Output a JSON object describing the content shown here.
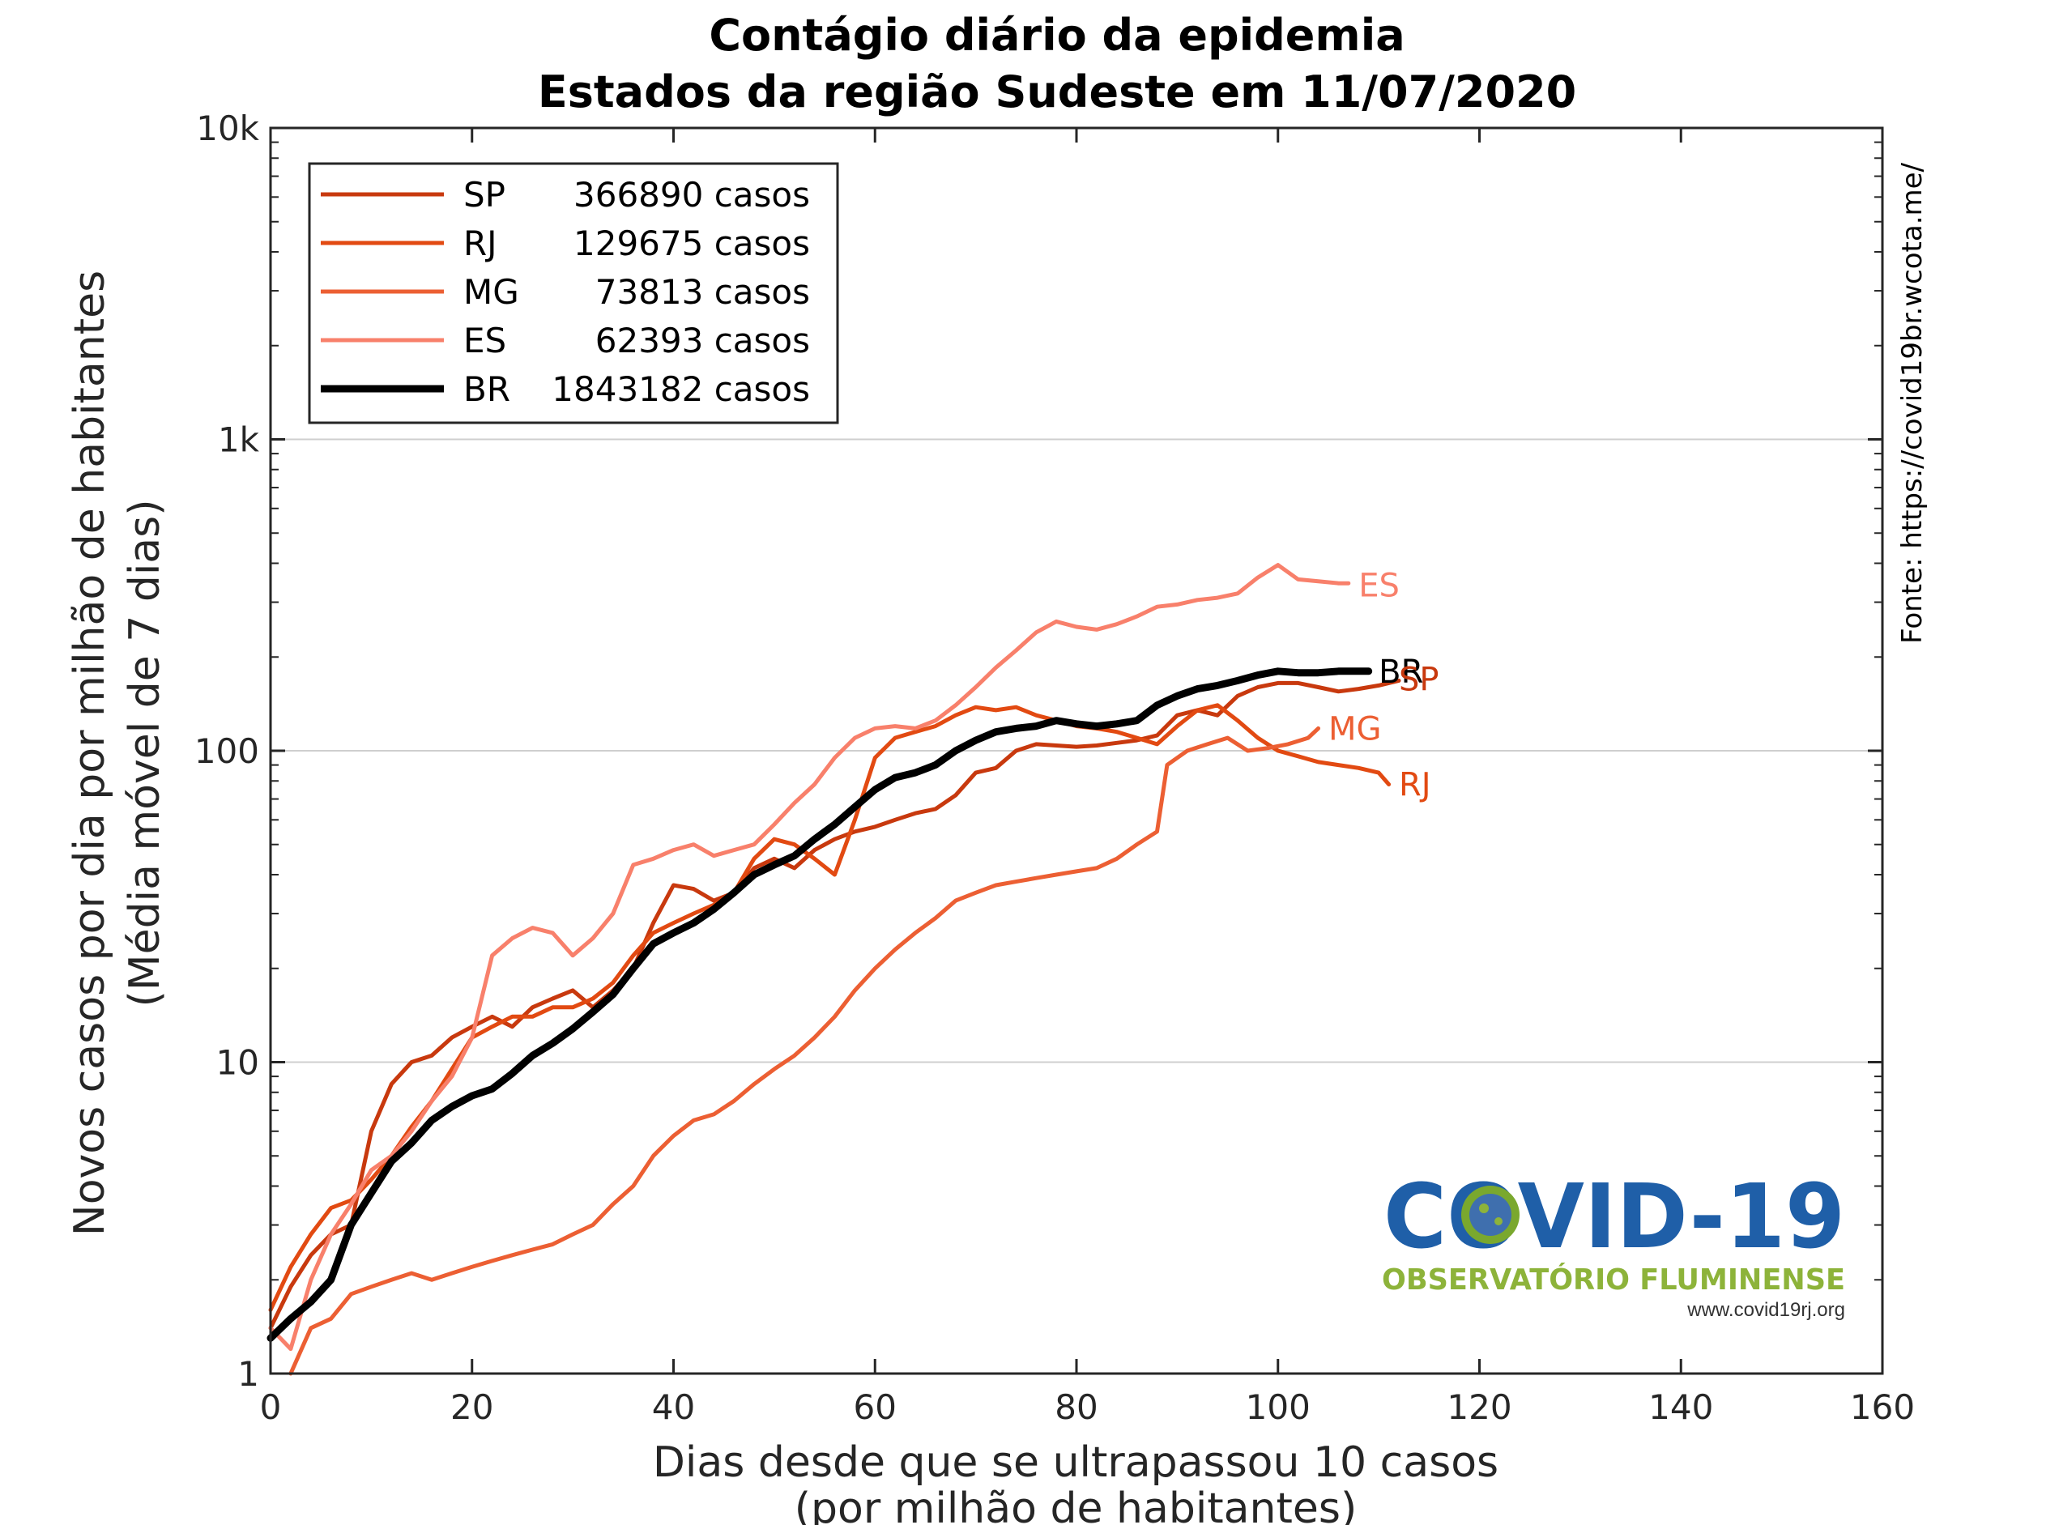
{
  "chart_data": {
    "type": "line",
    "title": [
      "Contágio diário da epidemia",
      "Estados da região Sudeste em 11/07/2020"
    ],
    "xlabel": [
      "Dias desde que se ultrapassou 10 casos",
      "(por milhão de habitantes)"
    ],
    "ylabel": [
      "Novos casos por dia por milhão de habitantes",
      "(Média móvel de 7 dias)"
    ],
    "xlim": [
      0,
      160
    ],
    "ylim": [
      1,
      10000
    ],
    "yscale": "log",
    "grid": "horizontal major",
    "legend_position": "top-left",
    "x_ticks": [
      0,
      20,
      40,
      60,
      80,
      100,
      120,
      140,
      160
    ],
    "y_ticks": [
      {
        "value": 1,
        "label": "1"
      },
      {
        "value": 10,
        "label": "10"
      },
      {
        "value": 100,
        "label": "100"
      },
      {
        "value": 1000,
        "label": "1k"
      },
      {
        "value": 10000,
        "label": "10k"
      }
    ],
    "series": [
      {
        "name": "SP",
        "legend_cases": "366890 casos",
        "color": "#c8390e",
        "width": 5,
        "points": [
          [
            0,
            1.4
          ],
          [
            2,
            1.9
          ],
          [
            4,
            2.4
          ],
          [
            6,
            2.8
          ],
          [
            8,
            3.0
          ],
          [
            10,
            6.0
          ],
          [
            12,
            8.5
          ],
          [
            14,
            10
          ],
          [
            16,
            10.5
          ],
          [
            18,
            12
          ],
          [
            20,
            13
          ],
          [
            22,
            14
          ],
          [
            24,
            13
          ],
          [
            26,
            15
          ],
          [
            28,
            16
          ],
          [
            30,
            17
          ],
          [
            32,
            15
          ],
          [
            34,
            17
          ],
          [
            36,
            20
          ],
          [
            38,
            28
          ],
          [
            40,
            37
          ],
          [
            42,
            36
          ],
          [
            44,
            33
          ],
          [
            46,
            35
          ],
          [
            48,
            42
          ],
          [
            50,
            45
          ],
          [
            52,
            42
          ],
          [
            54,
            48
          ],
          [
            56,
            52
          ],
          [
            58,
            55
          ],
          [
            60,
            57
          ],
          [
            62,
            60
          ],
          [
            64,
            63
          ],
          [
            66,
            65
          ],
          [
            68,
            72
          ],
          [
            70,
            85
          ],
          [
            72,
            88
          ],
          [
            74,
            100
          ],
          [
            76,
            105
          ],
          [
            78,
            104
          ],
          [
            80,
            103
          ],
          [
            82,
            104
          ],
          [
            84,
            106
          ],
          [
            86,
            108
          ],
          [
            88,
            112
          ],
          [
            90,
            130
          ],
          [
            92,
            135
          ],
          [
            94,
            130
          ],
          [
            96,
            150
          ],
          [
            98,
            160
          ],
          [
            100,
            165
          ],
          [
            102,
            165
          ],
          [
            104,
            160
          ],
          [
            106,
            155
          ],
          [
            108,
            158
          ],
          [
            110,
            162
          ],
          [
            112,
            168
          ]
        ]
      },
      {
        "name": "RJ",
        "legend_cases": "129675 casos",
        "color": "#e24a12",
        "width": 5,
        "points": [
          [
            0,
            1.6
          ],
          [
            2,
            2.2
          ],
          [
            4,
            2.8
          ],
          [
            6,
            3.4
          ],
          [
            8,
            3.6
          ],
          [
            10,
            4.2
          ],
          [
            12,
            5.0
          ],
          [
            14,
            6.2
          ],
          [
            16,
            7.5
          ],
          [
            18,
            9.5
          ],
          [
            20,
            12
          ],
          [
            22,
            13
          ],
          [
            24,
            14
          ],
          [
            26,
            14
          ],
          [
            28,
            15
          ],
          [
            30,
            15
          ],
          [
            32,
            16
          ],
          [
            34,
            18
          ],
          [
            36,
            22
          ],
          [
            38,
            26
          ],
          [
            40,
            28
          ],
          [
            42,
            30
          ],
          [
            44,
            32
          ],
          [
            46,
            35
          ],
          [
            48,
            45
          ],
          [
            50,
            52
          ],
          [
            52,
            50
          ],
          [
            54,
            45
          ],
          [
            56,
            40
          ],
          [
            58,
            60
          ],
          [
            60,
            95
          ],
          [
            62,
            110
          ],
          [
            64,
            115
          ],
          [
            66,
            120
          ],
          [
            68,
            130
          ],
          [
            70,
            138
          ],
          [
            72,
            135
          ],
          [
            74,
            138
          ],
          [
            76,
            130
          ],
          [
            78,
            125
          ],
          [
            80,
            120
          ],
          [
            82,
            118
          ],
          [
            84,
            115
          ],
          [
            86,
            110
          ],
          [
            88,
            105
          ],
          [
            90,
            120
          ],
          [
            92,
            135
          ],
          [
            94,
            140
          ],
          [
            96,
            125
          ],
          [
            98,
            110
          ],
          [
            100,
            100
          ],
          [
            102,
            96
          ],
          [
            104,
            92
          ],
          [
            106,
            90
          ],
          [
            108,
            88
          ],
          [
            110,
            85
          ],
          [
            111,
            78
          ]
        ]
      },
      {
        "name": "MG",
        "legend_cases": "73813 casos",
        "color": "#ec5f33",
        "width": 5,
        "points": [
          [
            2,
            1.0
          ],
          [
            4,
            1.4
          ],
          [
            6,
            1.5
          ],
          [
            8,
            1.8
          ],
          [
            10,
            1.9
          ],
          [
            12,
            2.0
          ],
          [
            14,
            2.1
          ],
          [
            16,
            2.0
          ],
          [
            18,
            2.1
          ],
          [
            20,
            2.2
          ],
          [
            22,
            2.3
          ],
          [
            24,
            2.4
          ],
          [
            26,
            2.5
          ],
          [
            28,
            2.6
          ],
          [
            30,
            2.8
          ],
          [
            32,
            3.0
          ],
          [
            34,
            3.5
          ],
          [
            36,
            4.0
          ],
          [
            38,
            5.0
          ],
          [
            40,
            5.8
          ],
          [
            42,
            6.5
          ],
          [
            44,
            6.8
          ],
          [
            46,
            7.5
          ],
          [
            48,
            8.5
          ],
          [
            50,
            9.5
          ],
          [
            52,
            10.5
          ],
          [
            54,
            12
          ],
          [
            56,
            14
          ],
          [
            58,
            17
          ],
          [
            60,
            20
          ],
          [
            62,
            23
          ],
          [
            64,
            26
          ],
          [
            66,
            29
          ],
          [
            68,
            33
          ],
          [
            70,
            35
          ],
          [
            72,
            37
          ],
          [
            74,
            38
          ],
          [
            76,
            39
          ],
          [
            78,
            40
          ],
          [
            80,
            41
          ],
          [
            82,
            42
          ],
          [
            84,
            45
          ],
          [
            86,
            50
          ],
          [
            88,
            55
          ],
          [
            89,
            90
          ],
          [
            91,
            100
          ],
          [
            93,
            105
          ],
          [
            95,
            110
          ],
          [
            97,
            100
          ],
          [
            99,
            102
          ],
          [
            101,
            105
          ],
          [
            103,
            110
          ],
          [
            104,
            118
          ]
        ]
      },
      {
        "name": "ES",
        "legend_cases": "62393 casos",
        "color": "#f8806b",
        "width": 5,
        "points": [
          [
            0,
            1.4
          ],
          [
            2,
            1.2
          ],
          [
            4,
            2.0
          ],
          [
            6,
            2.8
          ],
          [
            8,
            3.5
          ],
          [
            10,
            4.5
          ],
          [
            12,
            5.0
          ],
          [
            14,
            6.0
          ],
          [
            16,
            7.5
          ],
          [
            18,
            9.0
          ],
          [
            20,
            12
          ],
          [
            22,
            22
          ],
          [
            24,
            25
          ],
          [
            26,
            27
          ],
          [
            28,
            26
          ],
          [
            30,
            22
          ],
          [
            32,
            25
          ],
          [
            34,
            30
          ],
          [
            36,
            43
          ],
          [
            38,
            45
          ],
          [
            40,
            48
          ],
          [
            42,
            50
          ],
          [
            44,
            46
          ],
          [
            46,
            48
          ],
          [
            48,
            50
          ],
          [
            50,
            58
          ],
          [
            52,
            68
          ],
          [
            54,
            78
          ],
          [
            56,
            95
          ],
          [
            58,
            110
          ],
          [
            60,
            118
          ],
          [
            62,
            120
          ],
          [
            64,
            118
          ],
          [
            66,
            125
          ],
          [
            68,
            140
          ],
          [
            70,
            160
          ],
          [
            72,
            185
          ],
          [
            74,
            210
          ],
          [
            76,
            240
          ],
          [
            78,
            260
          ],
          [
            80,
            250
          ],
          [
            82,
            245
          ],
          [
            84,
            255
          ],
          [
            86,
            270
          ],
          [
            88,
            290
          ],
          [
            90,
            295
          ],
          [
            92,
            305
          ],
          [
            94,
            310
          ],
          [
            96,
            320
          ],
          [
            98,
            360
          ],
          [
            100,
            395
          ],
          [
            102,
            355
          ],
          [
            104,
            350
          ],
          [
            106,
            345
          ],
          [
            107,
            345
          ]
        ]
      },
      {
        "name": "BR",
        "legend_cases": "1843182 casos",
        "color": "#000000",
        "width": 9,
        "points": [
          [
            0,
            1.3
          ],
          [
            2,
            1.5
          ],
          [
            4,
            1.7
          ],
          [
            6,
            2.0
          ],
          [
            8,
            3.0
          ],
          [
            10,
            3.8
          ],
          [
            12,
            4.8
          ],
          [
            14,
            5.5
          ],
          [
            16,
            6.5
          ],
          [
            18,
            7.2
          ],
          [
            20,
            7.8
          ],
          [
            22,
            8.2
          ],
          [
            24,
            9.2
          ],
          [
            26,
            10.5
          ],
          [
            28,
            11.5
          ],
          [
            30,
            12.8
          ],
          [
            32,
            14.5
          ],
          [
            34,
            16.5
          ],
          [
            36,
            20
          ],
          [
            38,
            24
          ],
          [
            40,
            26
          ],
          [
            42,
            28
          ],
          [
            44,
            31
          ],
          [
            46,
            35
          ],
          [
            48,
            40
          ],
          [
            50,
            43
          ],
          [
            52,
            46
          ],
          [
            54,
            52
          ],
          [
            56,
            58
          ],
          [
            58,
            66
          ],
          [
            60,
            75
          ],
          [
            62,
            82
          ],
          [
            64,
            85
          ],
          [
            66,
            90
          ],
          [
            68,
            100
          ],
          [
            70,
            108
          ],
          [
            72,
            115
          ],
          [
            74,
            118
          ],
          [
            76,
            120
          ],
          [
            78,
            125
          ],
          [
            80,
            122
          ],
          [
            82,
            120
          ],
          [
            84,
            122
          ],
          [
            86,
            125
          ],
          [
            88,
            140
          ],
          [
            90,
            150
          ],
          [
            92,
            158
          ],
          [
            94,
            162
          ],
          [
            96,
            168
          ],
          [
            98,
            175
          ],
          [
            100,
            180
          ],
          [
            102,
            178
          ],
          [
            104,
            178
          ],
          [
            106,
            180
          ],
          [
            108,
            180
          ],
          [
            109,
            180
          ]
        ]
      }
    ],
    "end_labels": [
      {
        "series": "ES",
        "text": "ES",
        "x": 108,
        "y": 340,
        "color": "#f8806b"
      },
      {
        "series": "BR",
        "text": "BR",
        "x": 110,
        "y": 180,
        "color": "#000000"
      },
      {
        "series": "SP",
        "text": "SP",
        "x": 112,
        "y": 170,
        "color": "#c8390e"
      },
      {
        "series": "MG",
        "text": "MG",
        "x": 105,
        "y": 118,
        "color": "#ec5f33"
      },
      {
        "series": "RJ",
        "text": "RJ",
        "x": 112,
        "y": 78,
        "color": "#e24a12"
      }
    ],
    "source_note": "Fonte: https://covid19br.wcota.me/"
  },
  "logo": {
    "title": "COVID-19",
    "subtitle": "OBSERVATÓRIO FLUMINENSE",
    "url": "www.covid19rj.org"
  }
}
